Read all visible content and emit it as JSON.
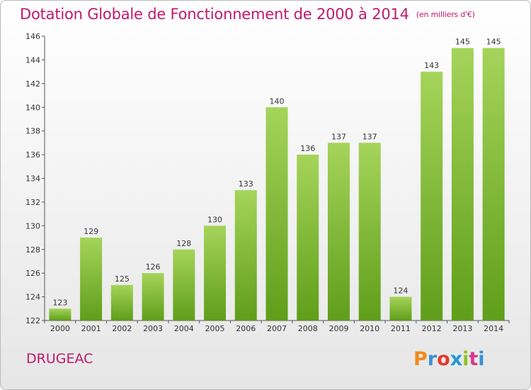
{
  "title": "Dotation Globale de Fonctionnement de 2000 à 2014",
  "unit_note": "(en milliers d'€)",
  "commune": "DRUGEAC",
  "logo": {
    "letters": [
      "P",
      "r",
      "o",
      "x",
      "i",
      "t",
      "i"
    ],
    "colors": [
      "#f08a1c",
      "#3a8fd6",
      "#e23a2e",
      "#1f9ad6",
      "#8fc31f",
      "#d63a8c",
      "#3a8fd6"
    ]
  },
  "colors": {
    "bar_top": "#a5d45a",
    "bar_bottom": "#5f9e1a",
    "title": "#c0186e"
  },
  "chart_data": {
    "type": "bar",
    "categories": [
      "2000",
      "2001",
      "2002",
      "2003",
      "2004",
      "2005",
      "2006",
      "2007",
      "2008",
      "2009",
      "2010",
      "2011",
      "2012",
      "2013",
      "2014"
    ],
    "values": [
      123,
      129,
      125,
      126,
      128,
      130,
      133,
      140,
      136,
      137,
      137,
      124,
      143,
      145,
      145
    ],
    "ylim": [
      122,
      146
    ],
    "yticks": [
      122,
      124,
      126,
      128,
      130,
      132,
      134,
      136,
      138,
      140,
      142,
      144,
      146
    ],
    "grid": false
  }
}
